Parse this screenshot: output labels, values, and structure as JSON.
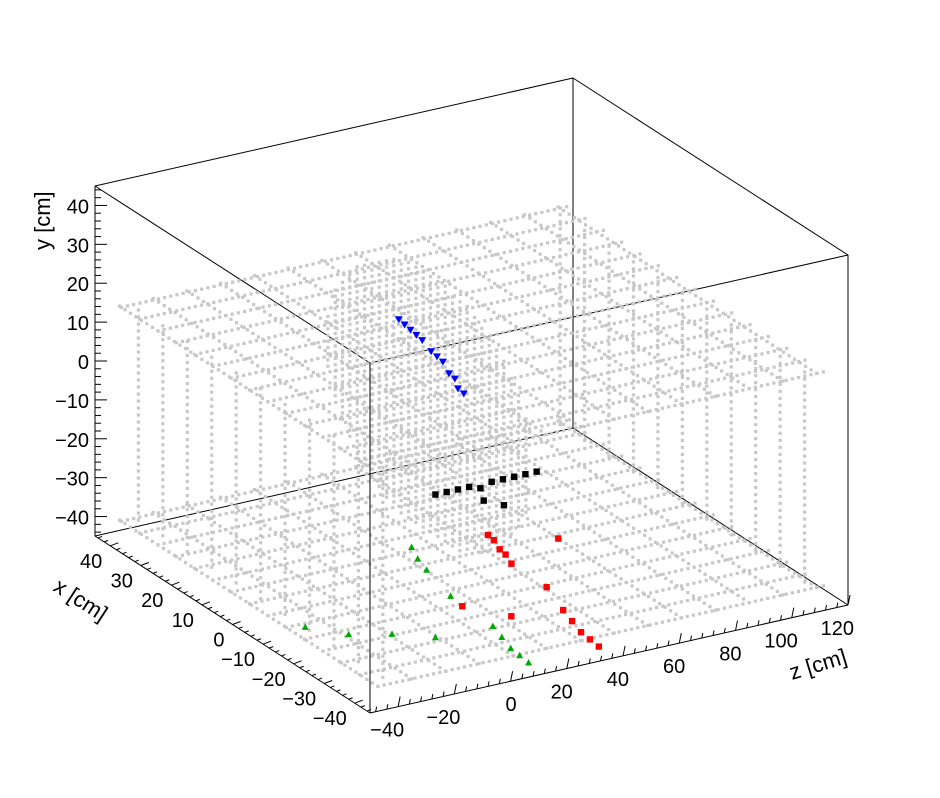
{
  "chart_data": {
    "type": "scatter",
    "projection": "3d",
    "title": "",
    "axes": {
      "x": {
        "label": "x [cm]",
        "range": [
          -45,
          45
        ],
        "ticks": [
          -40,
          -30,
          -20,
          -10,
          0,
          10,
          20,
          30,
          40
        ]
      },
      "y": {
        "label": "y [cm]",
        "range": [
          -45,
          45
        ],
        "ticks": [
          -40,
          -30,
          -20,
          -10,
          0,
          10,
          20,
          30,
          40
        ]
      },
      "z": {
        "label": "z [cm]",
        "range": [
          -50,
          120
        ],
        "ticks": [
          -40,
          -20,
          0,
          20,
          40,
          60,
          80,
          100,
          120
        ]
      }
    },
    "grid": false,
    "legend": "none",
    "colors": {
      "detector": "#c8c8c8",
      "series_blue": "#0000ff",
      "series_black": "#000000",
      "series_red": "#ff0000",
      "series_green": "#00aa00",
      "frame": "#000000"
    },
    "detector_geometry": {
      "disk": {
        "z": 20,
        "radius": 34
      },
      "strip_planes": [
        {
          "y": 15,
          "x_range": [
            -43,
            43
          ],
          "z_range": [
            -45,
            115
          ]
        },
        {
          "y": -40,
          "x_range": [
            -43,
            43
          ],
          "z_range": [
            -45,
            115
          ]
        }
      ],
      "vertical_planes": [
        {
          "z": -40,
          "x_range": [
            -40,
            40
          ],
          "y_range": [
            -40,
            15
          ]
        },
        {
          "z": 110,
          "x_range": [
            -40,
            40
          ],
          "y_range": [
            -40,
            15
          ]
        }
      ]
    },
    "series": [
      {
        "marker": "triangle-down",
        "color": "#0000ff",
        "points": [
          {
            "x": 10,
            "y": 17,
            "z": 20
          },
          {
            "x": 9,
            "y": 16,
            "z": 21
          },
          {
            "x": 8,
            "y": 15,
            "z": 22
          },
          {
            "x": 7,
            "y": 14,
            "z": 23
          },
          {
            "x": 6,
            "y": 13,
            "z": 24
          },
          {
            "x": 4,
            "y": 11,
            "z": 25
          },
          {
            "x": 3,
            "y": 10,
            "z": 26
          },
          {
            "x": 2,
            "y": 9,
            "z": 27
          },
          {
            "x": 0,
            "y": 7,
            "z": 27
          },
          {
            "x": -1,
            "y": 6,
            "z": 28
          },
          {
            "x": -2,
            "y": 4,
            "z": 28
          },
          {
            "x": -3,
            "y": 3,
            "z": 29
          }
        ]
      },
      {
        "marker": "square",
        "color": "#000000",
        "points": [
          {
            "x": -2,
            "y": -22,
            "z": 20
          },
          {
            "x": -2,
            "y": -22,
            "z": 24
          },
          {
            "x": -2,
            "y": -22,
            "z": 28
          },
          {
            "x": -2,
            "y": -22,
            "z": 32
          },
          {
            "x": -2,
            "y": -23,
            "z": 36
          },
          {
            "x": -2,
            "y": -22,
            "z": 40
          },
          {
            "x": -2,
            "y": -22,
            "z": 44
          },
          {
            "x": -2,
            "y": -22,
            "z": 48
          },
          {
            "x": -2,
            "y": -22,
            "z": 52
          },
          {
            "x": -2,
            "y": -22,
            "z": 56
          },
          {
            "x": -4,
            "y": -25,
            "z": 35
          },
          {
            "x": -6,
            "y": -26,
            "z": 40
          }
        ]
      },
      {
        "marker": "square",
        "color": "#ff0000",
        "points": [
          {
            "x": -10,
            "y": -30,
            "z": 30
          },
          {
            "x": -11,
            "y": -31,
            "z": 31
          },
          {
            "x": -12,
            "y": -33,
            "z": 32
          },
          {
            "x": -13,
            "y": -34,
            "z": 33
          },
          {
            "x": -14,
            "y": -36,
            "z": 34
          },
          {
            "x": -30,
            "y": -40,
            "z": 35
          },
          {
            "x": -32,
            "y": -42,
            "z": 36
          },
          {
            "x": -34,
            "y": -44,
            "z": 37
          },
          {
            "x": -36,
            "y": -45,
            "z": 38
          },
          {
            "x": -38,
            "y": -46,
            "z": 39
          },
          {
            "x": -20,
            "y": -40,
            "z": 10
          },
          {
            "x": -25,
            "y": -42,
            "z": 22
          },
          {
            "x": -20,
            "y": -40,
            "z": 40
          },
          {
            "x": -10,
            "y": -35,
            "z": 55
          }
        ]
      },
      {
        "marker": "triangle-up",
        "color": "#00aa00",
        "points": [
          {
            "x": -8,
            "y": -30,
            "z": 5
          },
          {
            "x": -10,
            "y": -32,
            "z": 5
          },
          {
            "x": -12,
            "y": -34,
            "z": 6
          },
          {
            "x": -18,
            "y": -38,
            "z": 8
          },
          {
            "x": -30,
            "y": -40,
            "z": 10
          },
          {
            "x": -32,
            "y": -42,
            "z": 11
          },
          {
            "x": -34,
            "y": -44,
            "z": 12
          },
          {
            "x": -36,
            "y": -45,
            "z": 13
          },
          {
            "x": -38,
            "y": -46,
            "z": 14
          },
          {
            "x": -10,
            "y": -43,
            "z": -35
          },
          {
            "x": -15,
            "y": -44,
            "z": -25
          },
          {
            "x": -20,
            "y": -43,
            "z": -15
          },
          {
            "x": -25,
            "y": -43,
            "z": -5
          }
        ]
      }
    ]
  }
}
